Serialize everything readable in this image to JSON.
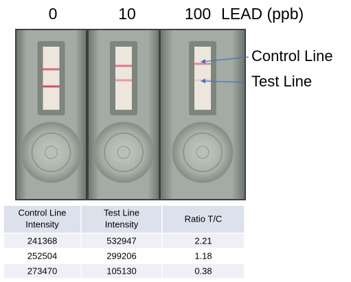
{
  "header": {
    "labels": [
      "0",
      "10",
      "100"
    ],
    "unit": "LEAD (ppb)"
  },
  "annotations": {
    "control": "Control Line",
    "test": "Test Line"
  },
  "table": {
    "header": [
      [
        "Control Line",
        "Intensity"
      ],
      [
        "Test Line",
        "Intensity"
      ],
      [
        "Ratio T/C"
      ]
    ],
    "rows": [
      [
        241368,
        532947,
        2.21
      ],
      [
        252504,
        299206,
        1.18
      ],
      [
        273470,
        105130,
        0.38
      ]
    ]
  }
}
